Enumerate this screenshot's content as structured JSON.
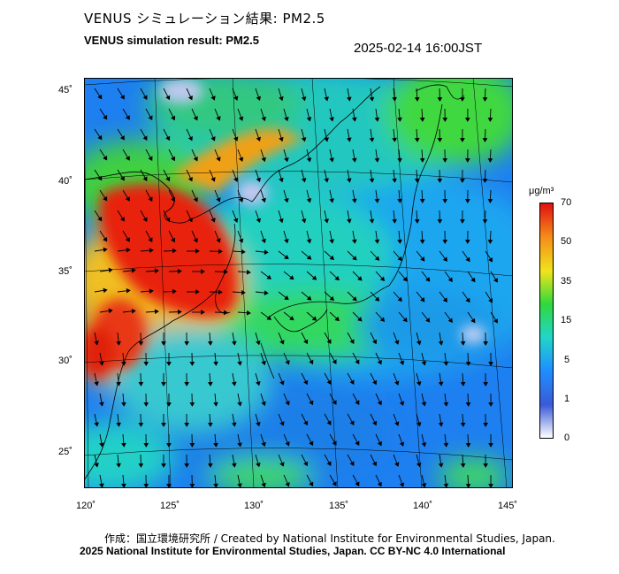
{
  "header": {
    "title_jp": "VENUS シミュレーション結果: PM2.5",
    "title_en": "VENUS simulation result: PM2.5",
    "timestamp": "2025-02-14 16:00JST"
  },
  "map": {
    "lat_labels": [
      "45˚",
      "40˚",
      "35˚",
      "30˚",
      "25˚"
    ],
    "lon_labels": [
      "120˚",
      "125˚",
      "130˚",
      "135˚",
      "140˚",
      "145˚"
    ]
  },
  "colorbar": {
    "unit": "μg/m³",
    "ticks": [
      "70",
      "50",
      "35",
      "15",
      "5",
      "1",
      "0"
    ],
    "colors": [
      "#ffffff",
      "#3a5ad8",
      "#1e90ff",
      "#22d6c8",
      "#2fd83c",
      "#f0e41c",
      "#f58a1a",
      "#e01010"
    ]
  },
  "footer": {
    "credit_jp": "作成：国立環境研究所 / Created by National Institute for Environmental Studies, Japan.",
    "credit_en": "2025 National Institute for Environmental Studies, Japan. CC BY-NC 4.0 International"
  }
}
